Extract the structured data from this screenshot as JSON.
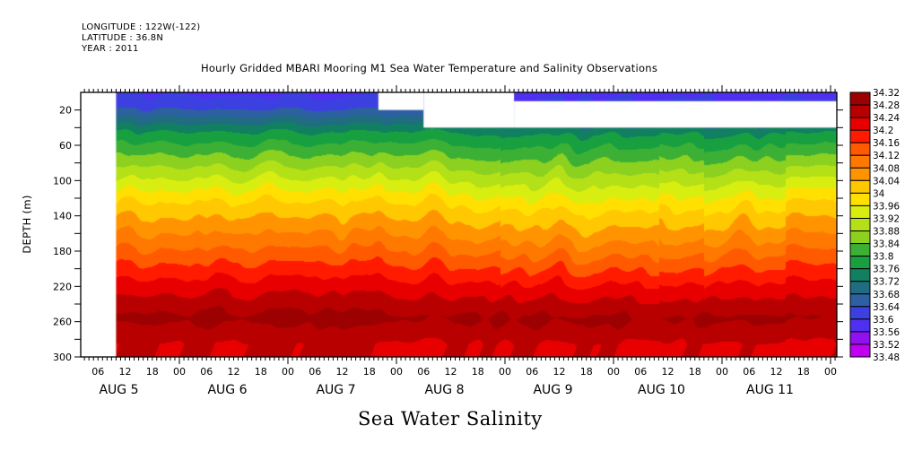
{
  "header": {
    "longitude": "LONGITUDE : 122W(-122)",
    "latitude": "LATITUDE : 36.8N",
    "year": "YEAR : 2011"
  },
  "chart_data": {
    "type": "heatmap",
    "title": "Hourly Gridded MBARI Mooring M1 Sea Water Temperature and Salinity Observations",
    "xlabel": "Sea Water Salinity",
    "ylabel": "DEPTH (m)",
    "variable": "Sea Water Salinity",
    "x_axis": {
      "type": "time",
      "start": "2011-08-05T02:30",
      "end": "2011-08-12T01:30",
      "data_start": "2011-08-05T10:00",
      "hour_tick_labels": [
        "06",
        "12",
        "18",
        "00",
        "06",
        "12",
        "18",
        "00",
        "06",
        "12",
        "18",
        "00",
        "06",
        "12",
        "18",
        "00",
        "06",
        "12",
        "18",
        "00",
        "06",
        "12",
        "18",
        "00",
        "06",
        "12",
        "18",
        "00"
      ],
      "day_labels": [
        "AUG  5",
        "AUG  6",
        "AUG  7",
        "AUG  8",
        "AUG  9",
        "AUG 10",
        "AUG 11"
      ]
    },
    "y_axis": {
      "range": [
        0,
        300
      ],
      "inverted": true,
      "tick_labels": [
        "20",
        "60",
        "100",
        "140",
        "180",
        "220",
        "260",
        "300"
      ],
      "tick_values": [
        20,
        60,
        100,
        140,
        180,
        220,
        260,
        300
      ]
    },
    "colorbar": {
      "levels": [
        "34.32",
        "34.28",
        "34.24",
        "34.2",
        "34.16",
        "34.12",
        "34.08",
        "34.04",
        "34",
        "33.96",
        "33.92",
        "33.88",
        "33.84",
        "33.8",
        "33.76",
        "33.72",
        "33.68",
        "33.64",
        "33.6",
        "33.56",
        "33.52",
        "33.48"
      ],
      "colors": [
        "#9c0000",
        "#b80000",
        "#d00000",
        "#e80000",
        "#ff1a00",
        "#ff3c00",
        "#ff5a00",
        "#ff7800",
        "#ff9400",
        "#ffac00",
        "#ffc800",
        "#ffe000",
        "#ffff00",
        "#d8ee10",
        "#b4e018",
        "#8cd020",
        "#64c02c",
        "#3cb034",
        "#18a040",
        "#00904c",
        "#108060",
        "#206c80",
        "#2c60a0",
        "#3050c0",
        "#3c40e0",
        "#5030f0",
        "#7020f0",
        "#9010f0",
        "#c000f0"
      ]
    },
    "missing_regions": [
      {
        "description": "no data before start",
        "time_end": "2011-08-05T10:00",
        "depth": [
          0,
          300
        ]
      },
      {
        "description": "shallow gap",
        "time": [
          "2011-08-07T20:00",
          "2011-08-08T06:00"
        ],
        "depth": [
          0,
          20
        ]
      },
      {
        "description": "shallow gap",
        "time": [
          "2011-08-08T06:00",
          "2011-08-09T02:00"
        ],
        "depth": [
          0,
          40
        ]
      },
      {
        "description": "shallow gap",
        "time": [
          "2011-08-09T02:00",
          "2011-08-12T01:30"
        ],
        "depth": [
          10,
          40
        ]
      }
    ],
    "profile_summary": [
      {
        "depth_range": [
          0,
          30
        ],
        "salinity_approx": 33.62
      },
      {
        "depth_range": [
          30,
          60
        ],
        "salinity_approx": 33.76
      },
      {
        "depth_range": [
          60,
          110
        ],
        "salinity_approx": 33.88
      },
      {
        "depth_range": [
          110,
          140
        ],
        "salinity_approx": 34.0
      },
      {
        "depth_range": [
          140,
          200
        ],
        "salinity_approx": 34.1
      },
      {
        "depth_range": [
          200,
          240
        ],
        "salinity_approx": 34.22
      },
      {
        "depth_range": [
          240,
          270
        ],
        "salinity_approx": 34.29
      },
      {
        "depth_range": [
          270,
          300
        ],
        "salinity_approx": 34.24
      }
    ]
  }
}
